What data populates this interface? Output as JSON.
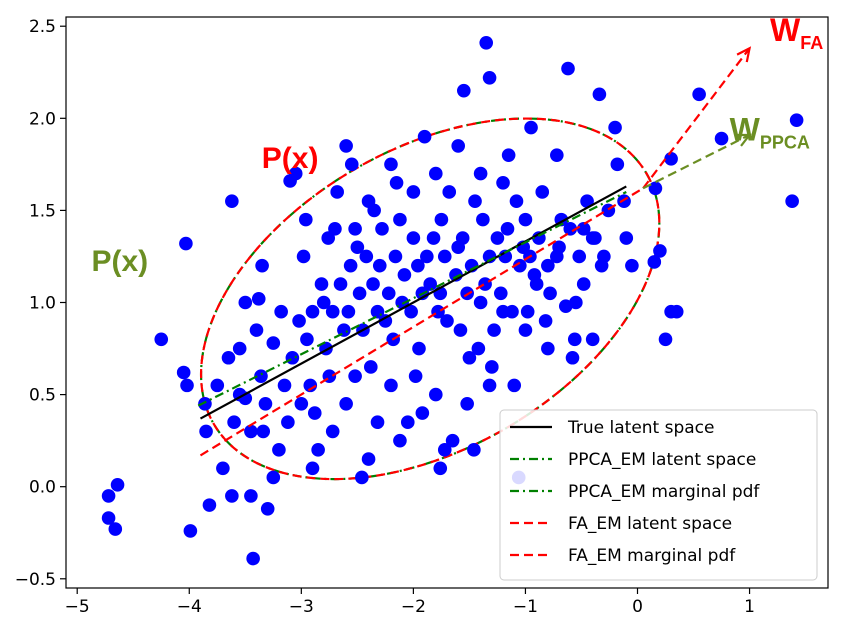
{
  "chart_data": {
    "type": "scatter",
    "title": "",
    "xlabel": "",
    "ylabel": "",
    "xlim": [
      -5.1,
      1.7
    ],
    "ylim": [
      -0.55,
      2.55
    ],
    "x_ticks": [
      -5,
      -4,
      -3,
      -2,
      -1,
      0,
      1
    ],
    "x_tick_labels": [
      "−5",
      "−4",
      "−3",
      "−2",
      "−1",
      "0",
      "1"
    ],
    "y_ticks": [
      -0.5,
      0.0,
      0.5,
      1.0,
      1.5,
      2.0,
      2.5
    ],
    "y_tick_labels": [
      "−0.5",
      "0.0",
      "0.5",
      "1.0",
      "1.5",
      "2.0",
      "2.5"
    ],
    "grid": false,
    "legend_position": "lower-right",
    "point_color": "#0000ff",
    "points": [
      [
        -4.72,
        -0.05
      ],
      [
        -4.64,
        0.01
      ],
      [
        -4.72,
        -0.17
      ],
      [
        -4.66,
        -0.23
      ],
      [
        -4.25,
        0.8
      ],
      [
        -4.05,
        0.62
      ],
      [
        -4.03,
        1.32
      ],
      [
        -3.99,
        -0.24
      ],
      [
        -3.82,
        -0.1
      ],
      [
        -3.62,
        1.55
      ],
      [
        -3.55,
        0.75
      ],
      [
        -3.5,
        0.48
      ],
      [
        -3.45,
        -0.05
      ],
      [
        -3.43,
        -0.39
      ],
      [
        -3.38,
        1.02
      ],
      [
        -3.36,
        0.6
      ],
      [
        -3.3,
        -0.12
      ],
      [
        -3.25,
        0.05
      ],
      [
        -3.2,
        0.2
      ],
      [
        -3.15,
        0.55
      ],
      [
        -3.1,
        1.66
      ],
      [
        -3.05,
        1.7
      ],
      [
        -3.0,
        0.45
      ],
      [
        -2.95,
        0.8
      ],
      [
        -2.9,
        0.95
      ],
      [
        -2.85,
        0.2
      ],
      [
        -2.8,
        1.0
      ],
      [
        -2.75,
        0.6
      ],
      [
        -2.7,
        1.4
      ],
      [
        -2.65,
        1.1
      ],
      [
        -2.6,
        0.45
      ],
      [
        -2.55,
        1.75
      ],
      [
        -2.5,
        1.3
      ],
      [
        -2.45,
        0.85
      ],
      [
        -2.4,
        0.15
      ],
      [
        -2.35,
        1.5
      ],
      [
        -2.3,
        1.2
      ],
      [
        -2.25,
        0.9
      ],
      [
        -2.2,
        0.55
      ],
      [
        -2.15,
        1.65
      ],
      [
        -2.1,
        1.0
      ],
      [
        -2.05,
        0.35
      ],
      [
        -2.0,
        1.35
      ],
      [
        -1.95,
        0.75
      ],
      [
        -1.9,
        1.9
      ],
      [
        -1.85,
        1.1
      ],
      [
        -1.8,
        0.5
      ],
      [
        -1.75,
        1.45
      ],
      [
        -1.7,
        0.9
      ],
      [
        -1.65,
        0.25
      ],
      [
        -1.6,
        1.3
      ],
      [
        -1.55,
        2.15
      ],
      [
        -1.5,
        0.7
      ],
      [
        -1.45,
        1.55
      ],
      [
        -1.4,
        1.0
      ],
      [
        -1.35,
        2.41
      ],
      [
        -1.32,
        2.22
      ],
      [
        -1.3,
        0.65
      ],
      [
        -1.25,
        1.35
      ],
      [
        -1.2,
        0.95
      ],
      [
        -1.15,
        1.8
      ],
      [
        -1.1,
        0.55
      ],
      [
        -1.05,
        1.2
      ],
      [
        -1.0,
        0.85
      ],
      [
        -0.95,
        1.95
      ],
      [
        -0.9,
        1.1
      ],
      [
        -0.85,
        1.6
      ],
      [
        -0.8,
        0.75
      ],
      [
        -0.7,
        1.3
      ],
      [
        -0.62,
        2.27
      ],
      [
        -0.55,
        1.0
      ],
      [
        -0.45,
        1.55
      ],
      [
        -0.34,
        2.13
      ],
      [
        -0.3,
        1.25
      ],
      [
        -0.2,
        1.95
      ],
      [
        -0.05,
        1.2
      ],
      [
        0.15,
        1.22
      ],
      [
        0.25,
        0.8
      ],
      [
        0.35,
        0.95
      ],
      [
        0.55,
        2.13
      ],
      [
        0.75,
        1.89
      ],
      [
        1.38,
        1.55
      ],
      [
        1.42,
        1.99
      ],
      [
        -3.7,
        0.1
      ],
      [
        -3.6,
        0.35
      ],
      [
        -3.4,
        0.85
      ],
      [
        -3.35,
        1.2
      ],
      [
        -3.18,
        0.95
      ],
      [
        -3.08,
        0.7
      ],
      [
        -2.98,
        1.25
      ],
      [
        -2.88,
        0.4
      ],
      [
        -2.78,
        0.75
      ],
      [
        -2.68,
        1.6
      ],
      [
        -2.58,
        0.95
      ],
      [
        -2.48,
        1.05
      ],
      [
        -2.38,
        0.65
      ],
      [
        -2.28,
        1.4
      ],
      [
        -2.18,
        0.8
      ],
      [
        -2.08,
        1.15
      ],
      [
        -1.98,
        0.6
      ],
      [
        -1.88,
        1.25
      ],
      [
        -1.78,
        0.95
      ],
      [
        -1.68,
        1.6
      ],
      [
        -1.58,
        0.85
      ],
      [
        -1.48,
        1.2
      ],
      [
        -1.38,
        1.45
      ],
      [
        -1.28,
        0.85
      ],
      [
        -1.18,
        1.25
      ],
      [
        -1.08,
        1.55
      ],
      [
        -0.98,
        0.95
      ],
      [
        -0.88,
        1.35
      ],
      [
        -0.78,
        1.05
      ],
      [
        -0.68,
        1.45
      ],
      [
        -0.58,
        0.7
      ],
      [
        -0.48,
        1.1
      ],
      [
        -0.38,
        1.35
      ],
      [
        -3.5,
        1.0
      ],
      [
        -3.25,
        0.78
      ],
      [
        -3.02,
        0.9
      ],
      [
        -2.82,
        1.1
      ],
      [
        -2.62,
        0.85
      ],
      [
        -2.42,
        1.25
      ],
      [
        -2.22,
        1.05
      ],
      [
        -2.02,
        0.95
      ],
      [
        -1.82,
        1.35
      ],
      [
        -1.62,
        1.15
      ],
      [
        -1.42,
        0.75
      ],
      [
        -1.22,
        1.05
      ],
      [
        -1.02,
        1.3
      ],
      [
        -0.82,
        0.9
      ],
      [
        -2.72,
        0.3
      ],
      [
        -2.52,
        0.6
      ],
      [
        -2.32,
        0.35
      ],
      [
        -2.12,
        0.25
      ],
      [
        -1.92,
        0.4
      ],
      [
        -1.72,
        0.2
      ],
      [
        -1.52,
        0.45
      ],
      [
        -1.32,
        0.55
      ],
      [
        -2.6,
        1.85
      ],
      [
        -2.4,
        1.55
      ],
      [
        -2.2,
        1.75
      ],
      [
        -2.0,
        1.6
      ],
      [
        -1.8,
        1.7
      ],
      [
        -1.6,
        1.85
      ],
      [
        -1.4,
        1.7
      ],
      [
        -1.2,
        1.65
      ],
      [
        -1.0,
        1.45
      ],
      [
        -0.8,
        1.2
      ],
      [
        -0.6,
        1.4
      ],
      [
        -3.85,
        0.3
      ],
      [
        -3.75,
        0.55
      ],
      [
        -3.65,
        0.7
      ],
      [
        -3.55,
        0.5
      ],
      [
        -3.45,
        0.3
      ],
      [
        -3.32,
        0.45
      ],
      [
        -3.12,
        0.35
      ],
      [
        -2.92,
        0.55
      ],
      [
        -2.72,
        0.95
      ],
      [
        -2.52,
        1.4
      ],
      [
        -2.32,
        0.95
      ],
      [
        -2.12,
        1.45
      ],
      [
        -1.92,
        1.05
      ],
      [
        -1.72,
        1.25
      ],
      [
        -1.52,
        1.05
      ],
      [
        -1.32,
        1.25
      ],
      [
        -1.12,
        0.95
      ],
      [
        -0.92,
        1.15
      ],
      [
        -0.72,
        1.25
      ],
      [
        -0.52,
        1.25
      ],
      [
        -0.32,
        1.2
      ],
      [
        -0.12,
        1.55
      ],
      [
        -2.96,
        1.45
      ],
      [
        -2.76,
        1.35
      ],
      [
        -2.56,
        1.2
      ],
      [
        -2.36,
        1.1
      ],
      [
        -2.16,
        1.25
      ],
      [
        -1.96,
        1.2
      ],
      [
        -1.76,
        1.05
      ],
      [
        -1.56,
        1.35
      ],
      [
        -1.36,
        1.1
      ],
      [
        -1.16,
        1.4
      ],
      [
        -0.96,
        1.25
      ],
      [
        0.2,
        1.28
      ],
      [
        0.3,
        0.95
      ],
      [
        0.3,
        1.78
      ],
      [
        0.16,
        1.62
      ],
      [
        -0.18,
        1.75
      ],
      [
        -0.26,
        1.5
      ],
      [
        -0.4,
        0.8
      ],
      [
        -0.48,
        1.4
      ],
      [
        -0.56,
        0.8
      ],
      [
        -0.64,
        0.98
      ],
      [
        -0.72,
        1.8
      ],
      [
        -1.06,
        0.05
      ],
      [
        -1.46,
        0.2
      ],
      [
        -1.76,
        0.1
      ],
      [
        -2.46,
        0.05
      ],
      [
        -2.9,
        0.1
      ],
      [
        -3.34,
        0.3
      ],
      [
        -3.62,
        -0.05
      ],
      [
        -3.86,
        0.45
      ],
      [
        -4.02,
        0.55
      ],
      [
        -0.4,
        1.35
      ],
      [
        -0.1,
        1.35
      ]
    ],
    "series": [
      {
        "name": "True latent space",
        "color": "#000000",
        "dash": "solid",
        "x": [
          -3.9,
          -0.1
        ],
        "y": [
          0.37,
          1.63
        ]
      },
      {
        "name": "PPCA_EM latent space",
        "color": "#008000",
        "dash": "dashdot",
        "x": [
          -3.92,
          -0.1
        ],
        "y": [
          0.44,
          1.6
        ]
      },
      {
        "name": "PPCA_EM marginal pdf",
        "color": "#008000",
        "dash": "dashdot",
        "ellipse": {
          "center": [
            -1.85,
            1.02
          ],
          "angle_deg": 30,
          "rx_px": 250,
          "ry_px": 150
        }
      },
      {
        "name": "FA_EM latent space",
        "color": "#ff0000",
        "dash": "dashed",
        "x": [
          -3.9,
          0.05
        ],
        "y": [
          0.17,
          1.62
        ]
      },
      {
        "name": "FA_EM marginal pdf",
        "color": "#ff0000",
        "dash": "dashed",
        "ellipse": {
          "center": [
            -1.85,
            1.02
          ],
          "angle_deg": 30,
          "rx_px": 250,
          "ry_px": 150
        }
      }
    ],
    "arrows": [
      {
        "color": "#ff0000",
        "from": [
          0.05,
          1.62
        ],
        "to": [
          1.0,
          2.38
        ]
      },
      {
        "color": "#6b8e23",
        "from": [
          0.05,
          1.62
        ],
        "to": [
          1.0,
          1.91
        ]
      }
    ],
    "annotations": [
      {
        "text": "W",
        "sub": "FA",
        "color": "#ff0000",
        "x": 1.42,
        "y": 2.42
      },
      {
        "text": "W",
        "sub": "PPCA",
        "color": "#6b8e23",
        "x": 1.18,
        "y": 1.88
      },
      {
        "text": "P(x)",
        "color": "#ff0000",
        "x": -3.1,
        "y": 1.73
      },
      {
        "text": "P(x)",
        "color": "#6b8e23",
        "x": -4.62,
        "y": 1.17
      }
    ]
  }
}
